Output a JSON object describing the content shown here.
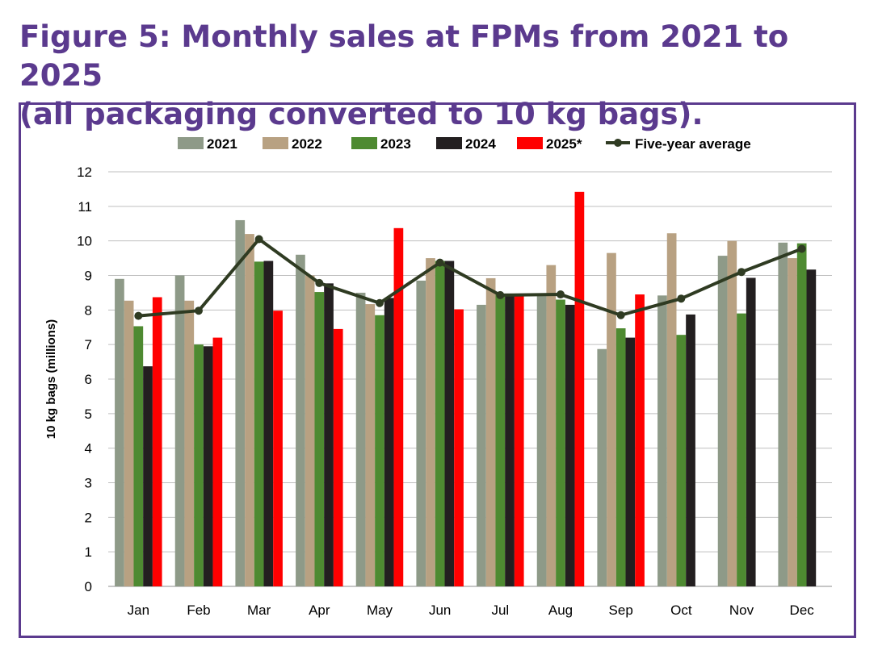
{
  "title_line1": "Figure 5: Monthly sales at FPMs from 2021 to 2025",
  "title_line2": "(all packaging converted to 10 kg bags).",
  "colors": {
    "title": "#5b3a8e",
    "frame": "#5b3a8e",
    "grid": "#bfbfbf"
  },
  "chart_data": {
    "type": "bar",
    "title": "Figure 5: Monthly sales at FPMs from 2021 to 2025 (all packaging converted to 10 kg bags).",
    "xlabel": "",
    "ylabel": "10 kg bags (millions)",
    "ylim": [
      0,
      12
    ],
    "yticks": [
      0,
      1,
      2,
      3,
      4,
      5,
      6,
      7,
      8,
      9,
      10,
      11,
      12
    ],
    "grid": true,
    "legend_position": "top",
    "categories": [
      "Jan",
      "Feb",
      "Mar",
      "Apr",
      "May",
      "Jun",
      "Jul",
      "Aug",
      "Sep",
      "Oct",
      "Nov",
      "Dec"
    ],
    "series": [
      {
        "name": "2021",
        "type": "bar",
        "color": "#8e9a88",
        "values": [
          8.9,
          9.0,
          10.6,
          9.6,
          8.5,
          8.85,
          8.15,
          8.45,
          6.87,
          8.42,
          9.57,
          9.95
        ]
      },
      {
        "name": "2022",
        "type": "bar",
        "color": "#b8a182",
        "values": [
          8.27,
          8.27,
          10.2,
          9.0,
          8.17,
          9.5,
          8.92,
          9.3,
          9.65,
          10.22,
          10.0,
          9.5
        ]
      },
      {
        "name": "2023",
        "type": "bar",
        "color": "#4e8a31",
        "values": [
          7.53,
          7.0,
          9.4,
          8.52,
          7.85,
          9.42,
          8.45,
          8.3,
          7.47,
          7.28,
          7.9,
          9.93
        ]
      },
      {
        "name": "2024",
        "type": "bar",
        "color": "#231f20",
        "values": [
          6.37,
          6.95,
          9.42,
          8.77,
          8.35,
          9.42,
          8.45,
          8.15,
          7.2,
          7.87,
          8.93,
          9.17
        ]
      },
      {
        "name": "2025*",
        "type": "bar",
        "color": "#ff0000",
        "values": [
          8.37,
          7.2,
          7.98,
          7.45,
          10.37,
          8.02,
          8.42,
          11.42,
          8.45,
          null,
          null,
          null
        ]
      },
      {
        "name": "Five-year average",
        "type": "line",
        "color": "#2f3b22",
        "values": [
          7.83,
          7.98,
          10.05,
          8.78,
          8.2,
          9.37,
          8.43,
          8.45,
          7.85,
          8.33,
          9.1,
          9.77
        ]
      }
    ]
  }
}
